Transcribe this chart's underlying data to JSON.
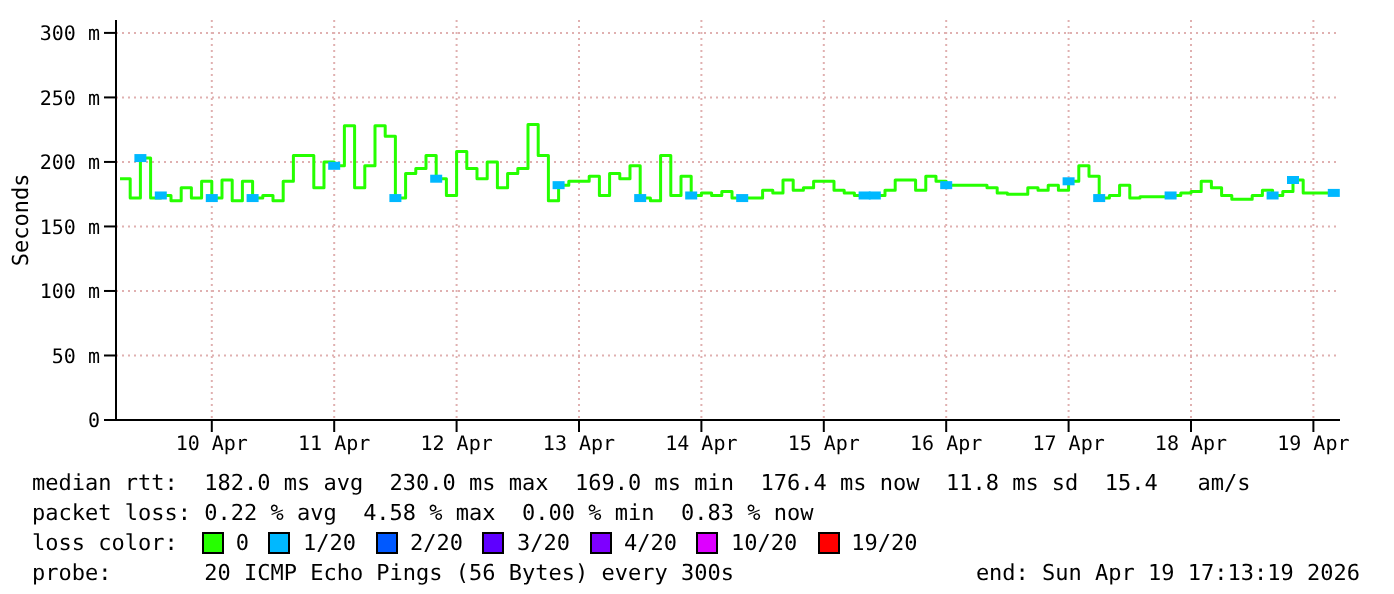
{
  "chart_data": {
    "type": "step",
    "ylabel": "Seconds",
    "legend_title": "loss color:",
    "legend": "bottom",
    "grid": true,
    "xlim": [
      "2026-04-09T17:13",
      "2026-04-19T17:13"
    ],
    "xticks": [
      {
        "value": "2026-04-10T12:00",
        "label": "10 Apr"
      },
      {
        "value": "2026-04-11T12:00",
        "label": "11 Apr"
      },
      {
        "value": "2026-04-12T12:00",
        "label": "12 Apr"
      },
      {
        "value": "2026-04-13T12:00",
        "label": "13 Apr"
      },
      {
        "value": "2026-04-14T12:00",
        "label": "14 Apr"
      },
      {
        "value": "2026-04-15T12:00",
        "label": "15 Apr"
      },
      {
        "value": "2026-04-16T12:00",
        "label": "16 Apr"
      },
      {
        "value": "2026-04-17T12:00",
        "label": "17 Apr"
      },
      {
        "value": "2026-04-18T12:00",
        "label": "18 Apr"
      },
      {
        "value": "2026-04-19T12:00",
        "label": "19 Apr"
      }
    ],
    "ylim": [
      0,
      310
    ],
    "yticks": [
      0,
      {
        "value": 50,
        "label": "50 m"
      },
      {
        "value": 100,
        "label": "100 m"
      },
      {
        "value": 150,
        "label": "150 m"
      },
      {
        "value": 200,
        "label": "200 m"
      },
      {
        "value": 250,
        "label": "250 m"
      },
      {
        "value": 300,
        "label": "300 m"
      }
    ],
    "x": [
      "2026-04-09T18:00",
      "2026-04-09T20:00",
      "2026-04-09T22:00",
      "2026-04-10T00:00",
      "2026-04-10T02:00",
      "2026-04-10T04:00",
      "2026-04-10T06:00",
      "2026-04-10T08:00",
      "2026-04-10T10:00",
      "2026-04-10T12:00",
      "2026-04-10T14:00",
      "2026-04-10T16:00",
      "2026-04-10T18:00",
      "2026-04-10T20:00",
      "2026-04-10T22:00",
      "2026-04-11T00:00",
      "2026-04-11T02:00",
      "2026-04-11T04:00",
      "2026-04-11T06:00",
      "2026-04-11T08:00",
      "2026-04-11T10:00",
      "2026-04-11T12:00",
      "2026-04-11T14:00",
      "2026-04-11T16:00",
      "2026-04-11T18:00",
      "2026-04-11T20:00",
      "2026-04-11T22:00",
      "2026-04-12T00:00",
      "2026-04-12T02:00",
      "2026-04-12T04:00",
      "2026-04-12T06:00",
      "2026-04-12T08:00",
      "2026-04-12T10:00",
      "2026-04-12T12:00",
      "2026-04-12T14:00",
      "2026-04-12T16:00",
      "2026-04-12T18:00",
      "2026-04-12T20:00",
      "2026-04-12T22:00",
      "2026-04-13T00:00",
      "2026-04-13T02:00",
      "2026-04-13T04:00",
      "2026-04-13T06:00",
      "2026-04-13T08:00",
      "2026-04-13T10:00",
      "2026-04-13T12:00",
      "2026-04-13T14:00",
      "2026-04-13T16:00",
      "2026-04-13T18:00",
      "2026-04-13T20:00",
      "2026-04-13T22:00",
      "2026-04-14T00:00",
      "2026-04-14T02:00",
      "2026-04-14T04:00",
      "2026-04-14T06:00",
      "2026-04-14T08:00",
      "2026-04-14T10:00",
      "2026-04-14T12:00",
      "2026-04-14T14:00",
      "2026-04-14T16:00",
      "2026-04-14T18:00",
      "2026-04-14T20:00",
      "2026-04-14T22:00",
      "2026-04-15T00:00",
      "2026-04-15T02:00",
      "2026-04-15T04:00",
      "2026-04-15T06:00",
      "2026-04-15T08:00",
      "2026-04-15T10:00",
      "2026-04-15T12:00",
      "2026-04-15T14:00",
      "2026-04-15T16:00",
      "2026-04-15T18:00",
      "2026-04-15T20:00",
      "2026-04-15T22:00",
      "2026-04-16T00:00",
      "2026-04-16T02:00",
      "2026-04-16T04:00",
      "2026-04-16T06:00",
      "2026-04-16T08:00",
      "2026-04-16T10:00",
      "2026-04-16T12:00",
      "2026-04-16T14:00",
      "2026-04-16T16:00",
      "2026-04-16T18:00",
      "2026-04-16T20:00",
      "2026-04-16T22:00",
      "2026-04-17T00:00",
      "2026-04-17T02:00",
      "2026-04-17T04:00",
      "2026-04-17T06:00",
      "2026-04-17T08:00",
      "2026-04-17T10:00",
      "2026-04-17T12:00",
      "2026-04-17T14:00",
      "2026-04-17T16:00",
      "2026-04-17T18:00",
      "2026-04-17T20:00",
      "2026-04-17T22:00",
      "2026-04-18T00:00",
      "2026-04-18T02:00",
      "2026-04-18T04:00",
      "2026-04-18T06:00",
      "2026-04-18T08:00",
      "2026-04-18T10:00",
      "2026-04-18T12:00",
      "2026-04-18T14:00",
      "2026-04-18T16:00",
      "2026-04-18T18:00",
      "2026-04-18T20:00",
      "2026-04-18T22:00",
      "2026-04-19T00:00",
      "2026-04-19T02:00",
      "2026-04-19T04:00",
      "2026-04-19T06:00",
      "2026-04-19T08:00",
      "2026-04-19T10:00",
      "2026-04-19T12:00",
      "2026-04-19T14:00",
      "2026-04-19T16:00"
    ],
    "series": [
      {
        "name": "0",
        "color": "#26ff00",
        "values": [
          187,
          172,
          203,
          172,
          174,
          170,
          180,
          172,
          185,
          172,
          186,
          170,
          185,
          172,
          174,
          170,
          185,
          205,
          205,
          180,
          200,
          197,
          228,
          180,
          197,
          228,
          220,
          172,
          191,
          195,
          205,
          187,
          174,
          208,
          195,
          187,
          200,
          180,
          191,
          195,
          229,
          205,
          170,
          182,
          185,
          185,
          189,
          174,
          191,
          187,
          197,
          172,
          170,
          205,
          174,
          189,
          174,
          176,
          174,
          177,
          172,
          172,
          172,
          178,
          176,
          186,
          178,
          180,
          185,
          185,
          178,
          176,
          174,
          174,
          174,
          178,
          186,
          186,
          178,
          189,
          185,
          182,
          182,
          182,
          182,
          180,
          176,
          175,
          175,
          180,
          178,
          182,
          178,
          185,
          197,
          189,
          172,
          174,
          182,
          172,
          173,
          173,
          173,
          174,
          176,
          177,
          185,
          180,
          174,
          171,
          171,
          174,
          178,
          174,
          177,
          186,
          176,
          176,
          176,
          176
        ]
      },
      {
        "name": "1/20",
        "color": "#00b8ff",
        "type": "scatter",
        "marker": "square",
        "x": [
          "2026-04-09T22:00",
          "2026-04-10T02:00",
          "2026-04-10T12:00",
          "2026-04-10T20:00",
          "2026-04-11T12:00",
          "2026-04-12T00:00",
          "2026-04-12T08:00",
          "2026-04-13T08:00",
          "2026-04-14T00:00",
          "2026-04-14T10:00",
          "2026-04-14T20:00",
          "2026-04-15T20:00",
          "2026-04-15T22:00",
          "2026-04-16T12:00",
          "2026-04-17T12:00",
          "2026-04-17T18:00",
          "2026-04-18T08:00",
          "2026-04-19T04:00",
          "2026-04-19T08:00",
          "2026-04-19T16:00"
        ],
        "values": [
          203,
          174,
          172,
          172,
          197,
          172,
          187,
          182,
          172,
          174,
          172,
          174,
          174,
          182,
          185,
          172,
          174,
          174,
          186,
          176
        ]
      },
      {
        "name": "2/20",
        "color": "#0059ff",
        "values": [
          null,
          null,
          null,
          null,
          null,
          null,
          null,
          null,
          null,
          null,
          null,
          null,
          null,
          null,
          null,
          null,
          null,
          null,
          null,
          null,
          null,
          null,
          null,
          null,
          null,
          null,
          null,
          null,
          null,
          null,
          null,
          null,
          null,
          null,
          null,
          null,
          null,
          null,
          null,
          null,
          null,
          null,
          null,
          null,
          null,
          null,
          null,
          null,
          null,
          null,
          null,
          null,
          null,
          null,
          null,
          null,
          null,
          null,
          null,
          null,
          null,
          null,
          null,
          null,
          null,
          null,
          null,
          null,
          null,
          null,
          null,
          null,
          null,
          null,
          null,
          null,
          null,
          null,
          null,
          null,
          null,
          null,
          null,
          null,
          null,
          null,
          null,
          null,
          null,
          null,
          null,
          null,
          null,
          null,
          null,
          null,
          null,
          null,
          null,
          null,
          null,
          null,
          null,
          null,
          null,
          null,
          null,
          null,
          null,
          null,
          null,
          null,
          null,
          null,
          null,
          null,
          null,
          null,
          null,
          null
        ]
      },
      {
        "name": "3/20",
        "color": "#5e00ff",
        "values": [
          null,
          null,
          null,
          null,
          null,
          null,
          null,
          null,
          null,
          null,
          null,
          null,
          null,
          null,
          null,
          null,
          null,
          null,
          null,
          null,
          null,
          null,
          null,
          null,
          null,
          null,
          null,
          null,
          null,
          null,
          null,
          null,
          null,
          null,
          null,
          null,
          null,
          null,
          null,
          null,
          null,
          null,
          null,
          null,
          null,
          null,
          null,
          null,
          null,
          null,
          null,
          null,
          null,
          null,
          null,
          null,
          null,
          null,
          null,
          null,
          null,
          null,
          null,
          null,
          null,
          null,
          null,
          null,
          null,
          null,
          null,
          null,
          null,
          null,
          null,
          null,
          null,
          null,
          null,
          null,
          null,
          null,
          null,
          null,
          null,
          null,
          null,
          null,
          null,
          null,
          null,
          null,
          null,
          null,
          null,
          null,
          null,
          null,
          null,
          null,
          null,
          null,
          null,
          null,
          null,
          null,
          null,
          null,
          null,
          null,
          null,
          null,
          null,
          null,
          null,
          null,
          null,
          null,
          null,
          null
        ]
      },
      {
        "name": "4/20",
        "color": "#7e00ff",
        "values": [
          null,
          null,
          null,
          null,
          null,
          null,
          null,
          null,
          null,
          null,
          null,
          null,
          null,
          null,
          null,
          null,
          null,
          null,
          null,
          null,
          null,
          null,
          null,
          null,
          null,
          null,
          null,
          null,
          null,
          null,
          null,
          null,
          null,
          null,
          null,
          null,
          null,
          null,
          null,
          null,
          null,
          null,
          null,
          null,
          null,
          null,
          null,
          null,
          null,
          null,
          null,
          null,
          null,
          null,
          null,
          null,
          null,
          null,
          null,
          null,
          null,
          null,
          null,
          null,
          null,
          null,
          null,
          null,
          null,
          null,
          null,
          null,
          null,
          null,
          null,
          null,
          null,
          null,
          null,
          null,
          null,
          null,
          null,
          null,
          null,
          null,
          null,
          null,
          null,
          null,
          null,
          null,
          null,
          null,
          null,
          null,
          null,
          null,
          null,
          null,
          null,
          null,
          null,
          null,
          null,
          null,
          null,
          null,
          null,
          null,
          null,
          null,
          null,
          null,
          null,
          null,
          null,
          null,
          null,
          null
        ]
      },
      {
        "name": "10/20",
        "color": "#dd00ff",
        "values": [
          null,
          null,
          null,
          null,
          null,
          null,
          null,
          null,
          null,
          null,
          null,
          null,
          null,
          null,
          null,
          null,
          null,
          null,
          null,
          null,
          null,
          null,
          null,
          null,
          null,
          null,
          null,
          null,
          null,
          null,
          null,
          null,
          null,
          null,
          null,
          null,
          null,
          null,
          null,
          null,
          null,
          null,
          null,
          null,
          null,
          null,
          null,
          null,
          null,
          null,
          null,
          null,
          null,
          null,
          null,
          null,
          null,
          null,
          null,
          null,
          null,
          null,
          null,
          null,
          null,
          null,
          null,
          null,
          null,
          null,
          null,
          null,
          null,
          null,
          null,
          null,
          null,
          null,
          null,
          null,
          null,
          null,
          null,
          null,
          null,
          null,
          null,
          null,
          null,
          null,
          null,
          null,
          null,
          null,
          null,
          null,
          null,
          null,
          null,
          null,
          null,
          null,
          null,
          null,
          null,
          null,
          null,
          null,
          null,
          null,
          null,
          null,
          null,
          null,
          null,
          null,
          null,
          null,
          null,
          null
        ]
      },
      {
        "name": "19/20",
        "color": "#ff0000",
        "values": [
          null,
          null,
          null,
          null,
          null,
          null,
          null,
          null,
          null,
          null,
          null,
          null,
          null,
          null,
          null,
          null,
          null,
          null,
          null,
          null,
          null,
          null,
          null,
          null,
          null,
          null,
          null,
          null,
          null,
          null,
          null,
          null,
          null,
          null,
          null,
          null,
          null,
          null,
          null,
          null,
          null,
          null,
          null,
          null,
          null,
          null,
          null,
          null,
          null,
          null,
          null,
          null,
          null,
          null,
          null,
          null,
          null,
          null,
          null,
          null,
          null,
          null,
          null,
          null,
          null,
          null,
          null,
          null,
          null,
          null,
          null,
          null,
          null,
          null,
          null,
          null,
          null,
          null,
          null,
          null,
          null,
          null,
          null,
          null,
          null,
          null,
          null,
          null,
          null,
          null,
          null,
          null,
          null,
          null,
          null,
          null,
          null,
          null,
          null,
          null,
          null,
          null,
          null,
          null,
          null,
          null,
          null,
          null,
          null,
          null,
          null,
          null,
          null,
          null,
          null,
          null,
          null,
          null,
          null,
          null
        ]
      }
    ],
    "annotations": [
      "median rtt:  182.0 ms avg  230.0 ms max  169.0 ms min  176.4 ms now  11.8 ms sd  15.4   am/s",
      "packet loss: 0.22 % avg  4.58 % max  0.00 % min  0.83 % now",
      "probe:       20 ICMP Echo Pings (56 Bytes) every 300s",
      "end: Sun Apr 19 17:13:19 2026"
    ]
  }
}
